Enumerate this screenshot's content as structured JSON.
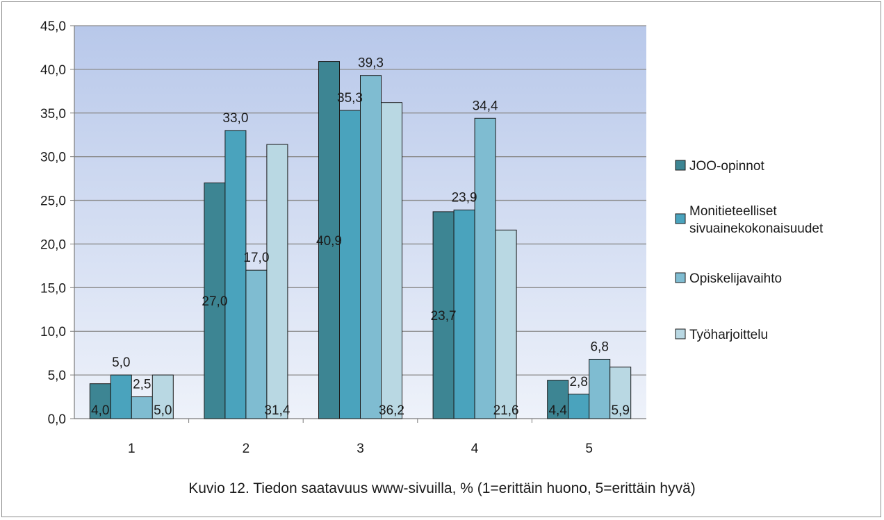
{
  "caption": "Kuvio 12. Tiedon saatavuus www-sivuilla, % (1=erittäin huono, 5=erittäin hyvä)",
  "colors": {
    "plot_gradient_top": "#b8c8ea",
    "plot_gradient_bottom": "#eef2fa",
    "gridline": "#8a8a8a",
    "axis": "#7a7a7a",
    "bar_outline": "#1a1a1a"
  },
  "chart_data": {
    "type": "bar",
    "title": "",
    "xlabel": "",
    "ylabel": "",
    "categories": [
      "1",
      "2",
      "3",
      "4",
      "5"
    ],
    "ylim": [
      0,
      45
    ],
    "ytick_step": 5,
    "ytick_labels": [
      "0,0",
      "5,0",
      "10,0",
      "15,0",
      "20,0",
      "25,0",
      "30,0",
      "35,0",
      "40,0",
      "45,0"
    ],
    "grid": true,
    "legend_position": "right",
    "series": [
      {
        "name": "JOO-opinnot",
        "color": "#3d8593",
        "values": [
          4.0,
          27.0,
          40.9,
          23.7,
          4.4
        ],
        "labels": [
          "4,0",
          "27,0",
          "40,9",
          "23,7",
          "4,4"
        ]
      },
      {
        "name": "Monitieteelliset sivuainekokonaisuudet",
        "color": "#4aa3bd",
        "values": [
          5.0,
          33.0,
          35.3,
          23.9,
          2.8
        ],
        "labels": [
          "5,0",
          "33,0",
          "35,3",
          "23,9",
          "2,8"
        ]
      },
      {
        "name": "Opiskelijavaihto",
        "color": "#7fbcd1",
        "values": [
          2.5,
          17.0,
          39.3,
          34.4,
          6.8
        ],
        "labels": [
          "2,5",
          "17,0",
          "39,3",
          "34,4",
          "6,8"
        ]
      },
      {
        "name": "Työharjoittelu",
        "color": "#b9d8e3",
        "values": [
          5.0,
          31.4,
          36.2,
          21.6,
          5.9
        ],
        "labels": [
          "5,0",
          "31,4",
          "36,2",
          "21,6",
          "5,9"
        ]
      }
    ]
  }
}
